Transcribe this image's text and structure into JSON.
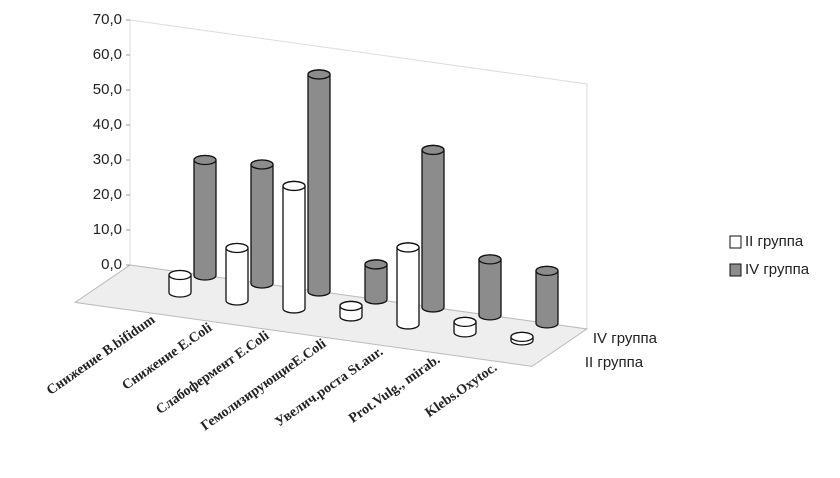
{
  "chart_data": {
    "type": "bar3d",
    "categories": [
      "Снижение B.bifidum",
      "Снижение E.Coli",
      "Слабофермент E.Coli",
      "ГемолизирующиеE.Coli",
      "Увелич.роста St.aur.",
      "Prot.Vulg., mirab.",
      "Klebs.Oxytoc."
    ],
    "series": [
      {
        "name": "II группа",
        "color": "#ffffff",
        "values": [
          5,
          15,
          35,
          3,
          22,
          3,
          1
        ]
      },
      {
        "name": "IV группа",
        "color": "#8c8c8c",
        "values": [
          33,
          34,
          62,
          10,
          45,
          16,
          15
        ]
      }
    ],
    "ylim": [
      0,
      70
    ],
    "yticks": [
      {
        "value": 0,
        "label": "0,0"
      },
      {
        "value": 10,
        "label": "10,0"
      },
      {
        "value": 20,
        "label": "20,0"
      },
      {
        "value": 30,
        "label": "30,0"
      },
      {
        "value": 40,
        "label": "40,0"
      },
      {
        "value": 50,
        "label": "50,0"
      },
      {
        "value": 60,
        "label": "60,0"
      },
      {
        "value": 70,
        "label": "70,0"
      }
    ]
  }
}
